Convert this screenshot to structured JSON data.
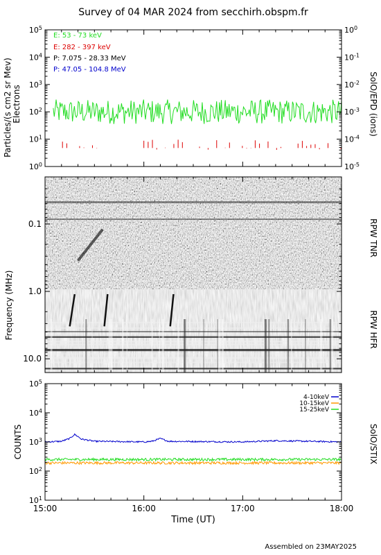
{
  "title": "Survey of 04 MAR 2024 from secchirh.obspm.fr",
  "footer": "Assembled on 23MAY2025",
  "xlabel": "Time (UT)",
  "x_ticks": [
    "15:00",
    "16:00",
    "17:00",
    "18:00"
  ],
  "panel_epd": {
    "ylabel_line1": "Particles/(s cm2 sr Mev)",
    "ylabel_line2": "Electrons",
    "right_label": "SolO/EPD (ions)",
    "left_ticks": [
      {
        "b": "10",
        "e": "5"
      },
      {
        "b": "10",
        "e": "4"
      },
      {
        "b": "10",
        "e": "3"
      },
      {
        "b": "10",
        "e": "2"
      },
      {
        "b": "10",
        "e": "1"
      },
      {
        "b": "10",
        "e": "0"
      }
    ],
    "right_ticks": [
      {
        "b": "10",
        "e": "0"
      },
      {
        "b": "10",
        "e": "-1"
      },
      {
        "b": "10",
        "e": "-2"
      },
      {
        "b": "10",
        "e": "-3"
      },
      {
        "b": "10",
        "e": "-4"
      },
      {
        "b": "10",
        "e": "-5"
      }
    ],
    "legend": [
      {
        "text": "E: 53 - 73 keV",
        "color": "#22dd22"
      },
      {
        "text": "E: 282 - 397 keV",
        "color": "#dd0000"
      },
      {
        "text": "P: 7.075 - 28.33 MeV",
        "color": "#000000"
      },
      {
        "text": "P: 47.05 - 104.8 MeV",
        "color": "#0000cc"
      }
    ]
  },
  "panel_rpw": {
    "ylabel": "Frequency (MHz)",
    "y_ticks": [
      "0.1",
      "1.0",
      "10.0"
    ],
    "label_tnr": "RPW TNR",
    "label_hfr": "RPW HFR"
  },
  "panel_stix": {
    "ylabel": "COUNTS",
    "right_label": "SolO/STIX",
    "y_ticks": [
      {
        "b": "10",
        "e": "5"
      },
      {
        "b": "10",
        "e": "4"
      },
      {
        "b": "10",
        "e": "3"
      },
      {
        "b": "10",
        "e": "2"
      },
      {
        "b": "10",
        "e": "1"
      }
    ],
    "legend": [
      {
        "text": "4-10keV",
        "color": "#0000cc"
      },
      {
        "text": "10-15keV",
        "color": "#ff9900"
      },
      {
        "text": "15-25keV",
        "color": "#22dd22"
      }
    ]
  },
  "chart_data": [
    {
      "type": "line",
      "name": "SolO/EPD",
      "x_range": [
        "15:00",
        "18:00"
      ],
      "ylim": [
        1,
        100000
      ],
      "y_scale": "log",
      "right_ylim": [
        1e-05,
        1
      ],
      "series": [
        {
          "name": "E: 53 - 73 keV",
          "color": "#22dd22",
          "typical": 100,
          "min": 30,
          "max": 300
        },
        {
          "name": "E: 282 - 397 keV",
          "color": "#dd0000",
          "typical": 5,
          "min": 4,
          "max": 10
        }
      ]
    },
    {
      "type": "heatmap",
      "name": "RPW TNR / HFR",
      "x_range": [
        "15:00",
        "18:00"
      ],
      "y_scale": "log",
      "ylim_mhz": [
        0.02,
        16
      ],
      "tnr_hfr_boundary_mhz": 1.0,
      "colormap": "grayscale"
    },
    {
      "type": "line",
      "name": "SolO/STIX",
      "x_range": [
        "15:00",
        "18:00"
      ],
      "ylim": [
        10,
        100000
      ],
      "y_scale": "log",
      "grid": false,
      "legend_position": "top-right",
      "series": [
        {
          "name": "4-10keV",
          "color": "#0000cc",
          "x": [
            "15:00",
            "15:10",
            "15:15",
            "15:18",
            "15:22",
            "15:30",
            "16:00",
            "16:05",
            "16:10",
            "16:15",
            "17:00",
            "17:20",
            "18:00"
          ],
          "values": [
            1000,
            1050,
            1300,
            1800,
            1250,
            1050,
            1000,
            1050,
            1300,
            1050,
            1000,
            1100,
            1000
          ]
        },
        {
          "name": "10-15keV",
          "color": "#ff9900",
          "x": [
            "15:00",
            "18:00"
          ],
          "values": [
            190,
            190
          ]
        },
        {
          "name": "15-25keV",
          "color": "#22dd22",
          "x": [
            "15:00",
            "18:00"
          ],
          "values": [
            250,
            250
          ]
        }
      ]
    }
  ]
}
